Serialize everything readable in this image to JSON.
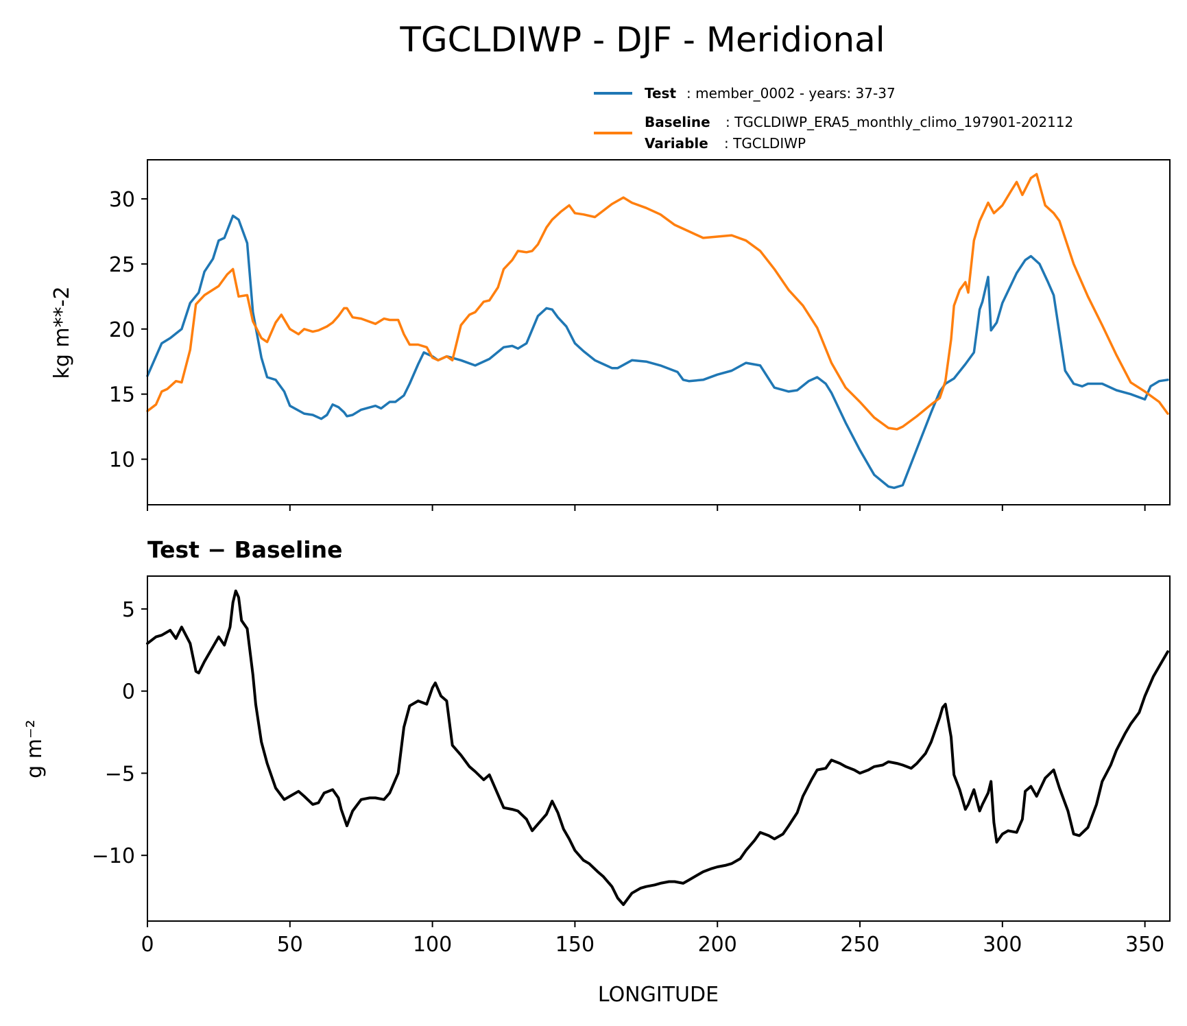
{
  "chart_data": [
    {
      "type": "line",
      "title": "TGCLDIWP - DJF - Meridional",
      "xlabel": "",
      "ylabel": "kg m**-2",
      "xlim": [
        0,
        358.75
      ],
      "ylim": [
        6.5,
        33.0
      ],
      "xticks": [
        0,
        50,
        100,
        150,
        200,
        250,
        300,
        350
      ],
      "yticks": [
        10,
        15,
        20,
        25,
        30
      ],
      "ytick_labels": [
        "10",
        "15",
        "20",
        "25",
        "30"
      ],
      "legend_location": "above-right",
      "series": [
        {
          "name": "Test",
          "legend_bold": "Test",
          "legend_text": ": member_0002 - years: 37-37",
          "color": "#1f77b4",
          "x": [
            0,
            5,
            8,
            12,
            15,
            18,
            20,
            23,
            25,
            27,
            30,
            32,
            35,
            37,
            40,
            42,
            45,
            48,
            50,
            55,
            58,
            61,
            63,
            65,
            67,
            69,
            70,
            72,
            75,
            80,
            82,
            85,
            87,
            90,
            92,
            95,
            97,
            100,
            102,
            105,
            110,
            115,
            120,
            125,
            128,
            130,
            133,
            137,
            140,
            142,
            144,
            147,
            150,
            153,
            157,
            160,
            163,
            165,
            170,
            175,
            180,
            186,
            188,
            190,
            195,
            200,
            205,
            210,
            215,
            220,
            225,
            228,
            232,
            235,
            238,
            240,
            245,
            250,
            255,
            260,
            262,
            265,
            270,
            275,
            278,
            280,
            283,
            287,
            290,
            292,
            293,
            295,
            296,
            298,
            300,
            305,
            308,
            310,
            313,
            316,
            318,
            322,
            325,
            328,
            330,
            335,
            340,
            345,
            350,
            352,
            355,
            358
          ],
          "values": [
            16.4,
            18.9,
            19.3,
            20.0,
            22.0,
            22.8,
            24.4,
            25.4,
            26.8,
            27.0,
            28.7,
            28.4,
            26.6,
            21.3,
            17.8,
            16.3,
            16.1,
            15.2,
            14.1,
            13.5,
            13.4,
            13.1,
            13.4,
            14.2,
            14.0,
            13.6,
            13.3,
            13.4,
            13.8,
            14.1,
            13.9,
            14.4,
            14.4,
            14.9,
            15.8,
            17.3,
            18.2,
            17.9,
            17.6,
            17.9,
            17.6,
            17.2,
            17.7,
            18.6,
            18.7,
            18.5,
            18.9,
            21.0,
            21.6,
            21.5,
            20.9,
            20.2,
            18.9,
            18.3,
            17.6,
            17.3,
            17.0,
            17.0,
            17.6,
            17.5,
            17.2,
            16.7,
            16.1,
            16.0,
            16.1,
            16.5,
            16.8,
            17.4,
            17.2,
            15.5,
            15.2,
            15.3,
            16.0,
            16.3,
            15.8,
            15.1,
            12.8,
            10.7,
            8.8,
            7.9,
            7.8,
            8.0,
            10.8,
            13.6,
            15.2,
            15.8,
            16.2,
            17.3,
            18.2,
            21.5,
            22.1,
            24.0,
            19.9,
            20.5,
            22.0,
            24.3,
            25.3,
            25.6,
            25.0,
            23.6,
            22.6,
            16.8,
            15.8,
            15.6,
            15.8,
            15.8,
            15.3,
            15.0,
            14.6,
            15.6,
            16.0,
            16.1
          ],
          "extra_points": [
            [
              356,
              15.8
            ],
            [
              357,
              16.0
            ]
          ]
        },
        {
          "name": "Baseline",
          "legend_bold": "Baseline",
          "legend_text": ": TGCLDIWP_ERA5_monthly_climo_197901-202112",
          "color": "#ff7f0e",
          "x": [
            0,
            3,
            5,
            7,
            10,
            12,
            15,
            17,
            20,
            25,
            28,
            30,
            32,
            35,
            37,
            40,
            42,
            45,
            47,
            50,
            53,
            55,
            58,
            60,
            63,
            65,
            67,
            69,
            70,
            72,
            75,
            80,
            83,
            85,
            88,
            90,
            92,
            95,
            98,
            100,
            102,
            105,
            107,
            110,
            113,
            115,
            118,
            120,
            123,
            125,
            128,
            130,
            133,
            135,
            137,
            140,
            142,
            145,
            148,
            150,
            153,
            157,
            160,
            163,
            167,
            170,
            175,
            180,
            185,
            190,
            195,
            200,
            205,
            210,
            215,
            220,
            225,
            230,
            235,
            240,
            245,
            250,
            255,
            260,
            263,
            265,
            270,
            275,
            278,
            280,
            282,
            283,
            285,
            287,
            288,
            290,
            292,
            295,
            297,
            300,
            303,
            305,
            307,
            310,
            312,
            315,
            318,
            320,
            325,
            330,
            335,
            340,
            345,
            350,
            355,
            358
          ],
          "values": [
            13.7,
            14.2,
            15.2,
            15.4,
            16.0,
            15.9,
            18.4,
            21.9,
            22.6,
            23.3,
            24.2,
            24.6,
            22.5,
            22.6,
            20.6,
            19.3,
            19.0,
            20.5,
            21.1,
            20.0,
            19.6,
            20.0,
            19.8,
            19.9,
            20.2,
            20.5,
            21.0,
            21.6,
            21.6,
            20.9,
            20.8,
            20.4,
            20.8,
            20.7,
            20.7,
            19.6,
            18.8,
            18.8,
            18.6,
            17.8,
            17.6,
            17.9,
            17.6,
            20.3,
            21.1,
            21.3,
            22.1,
            22.2,
            23.2,
            24.6,
            25.3,
            26.0,
            25.9,
            26.0,
            26.5,
            27.8,
            28.4,
            29.0,
            29.5,
            28.9,
            28.8,
            28.6,
            29.1,
            29.6,
            30.1,
            29.7,
            29.3,
            28.8,
            28.0,
            27.5,
            27.0,
            27.1,
            27.2,
            26.8,
            26.0,
            24.6,
            23.0,
            21.8,
            20.1,
            17.4,
            15.5,
            14.4,
            13.2,
            12.4,
            12.3,
            12.5,
            13.3,
            14.2,
            14.7,
            16.0,
            19.2,
            21.8,
            23.0,
            23.6,
            22.8,
            26.8,
            28.3,
            29.7,
            28.9,
            29.5,
            30.6,
            31.3,
            30.3,
            31.6,
            31.9,
            29.5,
            28.9,
            28.3,
            25.0,
            22.5,
            20.3,
            18.0,
            15.9,
            15.2,
            14.4,
            13.5
          ]
        }
      ],
      "legend_variable_bold": "Variable",
      "legend_variable_text": ": TGCLDIWP"
    },
    {
      "type": "line",
      "title": "Test − Baseline",
      "xlabel": "LONGITUDE",
      "ylabel": "g m⁻²",
      "xlim": [
        0,
        358.75
      ],
      "ylim": [
        -14.0,
        7.0
      ],
      "xticks": [
        0,
        50,
        100,
        150,
        200,
        250,
        300,
        350
      ],
      "xtick_labels": [
        "0",
        "50",
        "100",
        "150",
        "200",
        "250",
        "300",
        "350"
      ],
      "yticks": [
        -10,
        -5,
        0,
        5
      ],
      "ytick_labels": [
        "−10",
        "−5",
        "0",
        "5"
      ],
      "series": [
        {
          "name": "Test − Baseline",
          "color": "#000000",
          "x": [
            0,
            3,
            5,
            8,
            10,
            12,
            15,
            17,
            18,
            20,
            23,
            25,
            27,
            29,
            30,
            31,
            32,
            33,
            35,
            37,
            38,
            40,
            42,
            45,
            48,
            50,
            53,
            55,
            58,
            60,
            62,
            65,
            67,
            68,
            70,
            72,
            75,
            78,
            80,
            83,
            85,
            88,
            90,
            92,
            95,
            98,
            100,
            101,
            103,
            105,
            107,
            110,
            113,
            115,
            118,
            120,
            123,
            125,
            128,
            130,
            133,
            135,
            137,
            140,
            142,
            144,
            146,
            148,
            150,
            153,
            155,
            158,
            160,
            163,
            165,
            167,
            170,
            173,
            175,
            178,
            180,
            183,
            185,
            188,
            190,
            193,
            195,
            198,
            200,
            203,
            205,
            208,
            210,
            213,
            215,
            218,
            220,
            223,
            225,
            228,
            230,
            233,
            235,
            238,
            240,
            243,
            245,
            248,
            250,
            253,
            255,
            258,
            260,
            263,
            265,
            268,
            270,
            273,
            275,
            276,
            278,
            279,
            280,
            282,
            283,
            285,
            287,
            288,
            290,
            292,
            293,
            295,
            296,
            297,
            298,
            300,
            302,
            305,
            307,
            308,
            310,
            312,
            315,
            318,
            320,
            323,
            325,
            327,
            330,
            333,
            335,
            338,
            340,
            343,
            345,
            348,
            350,
            353,
            355,
            358
          ],
          "values": [
            2.9,
            3.3,
            3.4,
            3.7,
            3.2,
            3.9,
            2.9,
            1.2,
            1.1,
            1.8,
            2.7,
            3.3,
            2.8,
            3.9,
            5.4,
            6.1,
            5.7,
            4.3,
            3.8,
            1.0,
            -0.8,
            -3.1,
            -4.4,
            -5.9,
            -6.6,
            -6.4,
            -6.1,
            -6.4,
            -6.9,
            -6.8,
            -6.2,
            -6.0,
            -6.5,
            -7.2,
            -8.2,
            -7.3,
            -6.6,
            -6.5,
            -6.5,
            -6.6,
            -6.2,
            -5.0,
            -2.2,
            -0.9,
            -0.6,
            -0.8,
            0.2,
            0.5,
            -0.3,
            -0.6,
            -3.3,
            -3.9,
            -4.6,
            -4.9,
            -5.4,
            -5.1,
            -6.3,
            -7.1,
            -7.2,
            -7.3,
            -7.8,
            -8.5,
            -8.1,
            -7.5,
            -6.7,
            -7.4,
            -8.4,
            -9.0,
            -9.7,
            -10.3,
            -10.5,
            -11.0,
            -11.3,
            -11.9,
            -12.6,
            -13.0,
            -12.3,
            -12.0,
            -11.9,
            -11.8,
            -11.7,
            -11.6,
            -11.6,
            -11.7,
            -11.5,
            -11.2,
            -11.0,
            -10.8,
            -10.7,
            -10.6,
            -10.5,
            -10.2,
            -9.7,
            -9.1,
            -8.6,
            -8.8,
            -9.0,
            -8.7,
            -8.2,
            -7.4,
            -6.4,
            -5.4,
            -4.8,
            -4.7,
            -4.2,
            -4.4,
            -4.6,
            -4.8,
            -5.0,
            -4.8,
            -4.6,
            -4.5,
            -4.3,
            -4.4,
            -4.5,
            -4.7,
            -4.4,
            -3.8,
            -3.1,
            -2.6,
            -1.6,
            -1.0,
            -0.8,
            -2.8,
            -5.1,
            -6.0,
            -7.2,
            -6.9,
            -6.0,
            -7.3,
            -6.9,
            -6.2,
            -5.5,
            -8.0,
            -9.2,
            -8.7,
            -8.5,
            -8.6,
            -7.8,
            -6.1,
            -5.8,
            -6.4,
            -5.3,
            -4.8,
            -5.9,
            -7.3,
            -8.7,
            -8.8,
            -8.3,
            -6.9,
            -5.5,
            -4.5,
            -3.6,
            -2.6,
            -2.0,
            -1.3,
            -0.3,
            0.9,
            1.5,
            2.4
          ]
        }
      ]
    }
  ]
}
